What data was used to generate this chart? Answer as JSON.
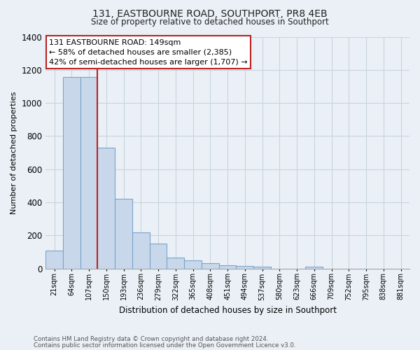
{
  "title1": "131, EASTBOURNE ROAD, SOUTHPORT, PR8 4EB",
  "title2": "Size of property relative to detached houses in Southport",
  "xlabel": "Distribution of detached houses by size in Southport",
  "ylabel": "Number of detached properties",
  "footer1": "Contains HM Land Registry data © Crown copyright and database right 2024.",
  "footer2": "Contains public sector information licensed under the Open Government Licence v3.0.",
  "bar_labels": [
    "21sqm",
    "64sqm",
    "107sqm",
    "150sqm",
    "193sqm",
    "236sqm",
    "279sqm",
    "322sqm",
    "365sqm",
    "408sqm",
    "451sqm",
    "494sqm",
    "537sqm",
    "580sqm",
    "623sqm",
    "666sqm",
    "709sqm",
    "752sqm",
    "795sqm",
    "838sqm",
    "881sqm"
  ],
  "bar_values": [
    110,
    1155,
    1155,
    730,
    420,
    220,
    150,
    65,
    48,
    33,
    20,
    15,
    13,
    0,
    0,
    10,
    0,
    0,
    0,
    0,
    0
  ],
  "bar_color": "#c8d8ea",
  "bar_edge_color": "#7aa4cc",
  "highlight_color": "#bb2222",
  "annotation_title": "131 EASTBOURNE ROAD: 149sqm",
  "annotation_line1": "← 58% of detached houses are smaller (2,385)",
  "annotation_line2": "42% of semi-detached houses are larger (1,707) →",
  "annotation_box_color": "#ffffff",
  "annotation_box_edge": "#bb2222",
  "ylim": [
    0,
    1400
  ],
  "yticks": [
    0,
    200,
    400,
    600,
    800,
    1000,
    1200,
    1400
  ],
  "grid_color": "#c8d4de",
  "background_color": "#eaf0f6"
}
